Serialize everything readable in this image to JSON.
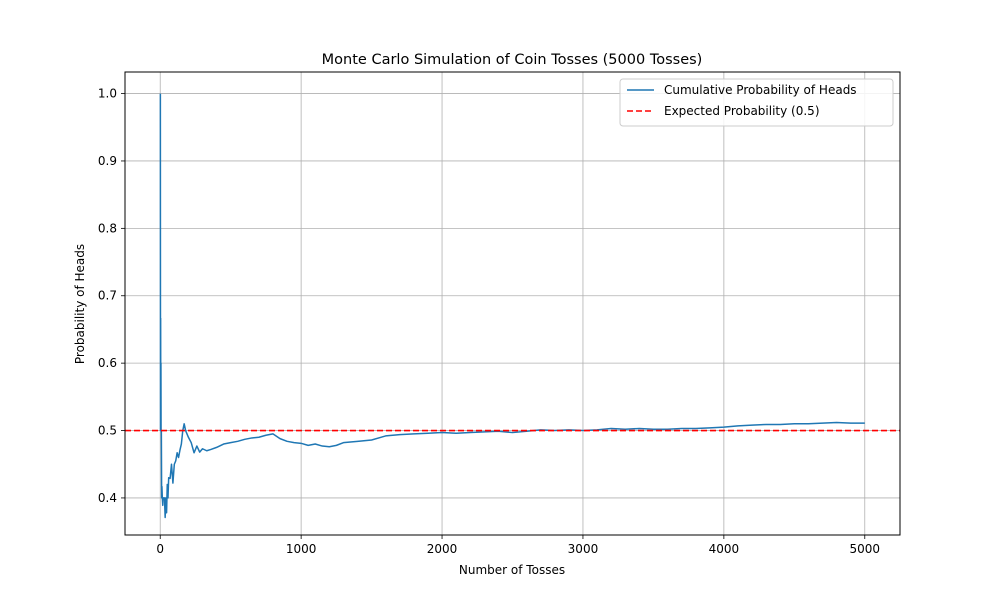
{
  "chart_data": {
    "type": "line",
    "title": "Monte Carlo Simulation of Coin Tosses (5000 Tosses)",
    "xlabel": "Number of Tosses",
    "ylabel": "Probability of Heads",
    "xlim": [
      -250,
      5250
    ],
    "ylim": [
      0.345,
      1.032
    ],
    "xticks": [
      0,
      1000,
      2000,
      3000,
      4000,
      5000
    ],
    "xtick_labels": [
      "0",
      "1000",
      "2000",
      "3000",
      "4000",
      "5000"
    ],
    "yticks": [
      0.4,
      0.5,
      0.6,
      0.7,
      0.8,
      0.9,
      1.0
    ],
    "ytick_labels": [
      "0.4",
      "0.5",
      "0.6",
      "0.7",
      "0.8",
      "0.9",
      "1.0"
    ],
    "grid": true,
    "legend_position": "upper-right",
    "series": [
      {
        "name": "Cumulative Probability of Heads",
        "color": "#1f77b4",
        "style": "solid",
        "x": [
          1,
          2,
          3,
          4,
          5,
          6,
          8,
          10,
          12,
          15,
          18,
          20,
          25,
          30,
          35,
          40,
          45,
          50,
          55,
          60,
          70,
          80,
          90,
          100,
          110,
          120,
          130,
          140,
          150,
          160,
          170,
          180,
          190,
          200,
          220,
          240,
          260,
          280,
          300,
          330,
          360,
          400,
          450,
          500,
          550,
          600,
          650,
          700,
          750,
          800,
          850,
          900,
          950,
          1000,
          1050,
          1100,
          1150,
          1200,
          1250,
          1300,
          1400,
          1500,
          1600,
          1700,
          1800,
          1900,
          2000,
          2100,
          2200,
          2300,
          2400,
          2500,
          2600,
          2700,
          2800,
          2900,
          3000,
          3100,
          3200,
          3300,
          3400,
          3500,
          3600,
          3700,
          3800,
          3900,
          4000,
          4100,
          4200,
          4300,
          4400,
          4500,
          4600,
          4700,
          4800,
          4900,
          5000
        ],
        "y": [
          1.0,
          0.5,
          0.667,
          0.5,
          0.6,
          0.5,
          0.5,
          0.4,
          0.417,
          0.4,
          0.389,
          0.4,
          0.4,
          0.4,
          0.371,
          0.4,
          0.378,
          0.42,
          0.4,
          0.43,
          0.429,
          0.45,
          0.422,
          0.45,
          0.455,
          0.467,
          0.46,
          0.471,
          0.48,
          0.5,
          0.51,
          0.5,
          0.495,
          0.49,
          0.482,
          0.467,
          0.477,
          0.468,
          0.473,
          0.47,
          0.472,
          0.475,
          0.48,
          0.482,
          0.484,
          0.487,
          0.489,
          0.49,
          0.493,
          0.495,
          0.488,
          0.484,
          0.482,
          0.481,
          0.478,
          0.48,
          0.477,
          0.476,
          0.478,
          0.482,
          0.484,
          0.486,
          0.492,
          0.494,
          0.495,
          0.496,
          0.497,
          0.496,
          0.497,
          0.498,
          0.499,
          0.497,
          0.499,
          0.501,
          0.5,
          0.501,
          0.5,
          0.501,
          0.503,
          0.502,
          0.503,
          0.502,
          0.502,
          0.503,
          0.503,
          0.504,
          0.505,
          0.507,
          0.508,
          0.509,
          0.509,
          0.51,
          0.51,
          0.511,
          0.512,
          0.511,
          0.511
        ]
      },
      {
        "name": "Expected Probability (0.5)",
        "color": "#ff0000",
        "style": "dashed",
        "y_constant": 0.5
      }
    ]
  }
}
